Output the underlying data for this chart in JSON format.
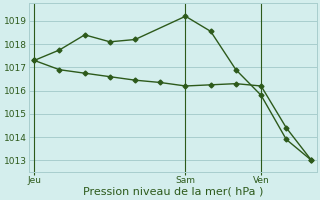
{
  "line1_x": [
    0,
    1,
    2,
    3,
    4,
    6,
    7,
    8,
    9,
    10,
    11
  ],
  "line1_y": [
    1017.3,
    1017.75,
    1018.4,
    1018.1,
    1018.2,
    1019.2,
    1018.55,
    1016.9,
    1015.8,
    1013.9,
    1013.0
  ],
  "line2_x": [
    0,
    1,
    2,
    3,
    4,
    5,
    6,
    7,
    8,
    9,
    10,
    11
  ],
  "line2_y": [
    1017.3,
    1016.9,
    1016.75,
    1016.6,
    1016.45,
    1016.35,
    1016.2,
    1016.25,
    1016.3,
    1016.2,
    1014.4,
    1013.0
  ],
  "line_color": "#2d5a1b",
  "marker": "D",
  "markersize": 2.5,
  "linewidth": 1.0,
  "background_color": "#d4eeed",
  "grid_color": "#a8cece",
  "xlabel": "Pression niveau de la mer( hPa )",
  "xlabel_fontsize": 8,
  "ylim": [
    1012.5,
    1019.75
  ],
  "yticks": [
    1013,
    1014,
    1015,
    1016,
    1017,
    1018,
    1019
  ],
  "ytick_fontsize": 6.5,
  "xtick_fontsize": 6.5,
  "day_labels": [
    {
      "label": "Jeu",
      "x": 0
    },
    {
      "label": "Sam",
      "x": 6
    },
    {
      "label": "Ven",
      "x": 9
    }
  ],
  "vline_x": [
    0,
    6,
    9
  ],
  "xlim": [
    -0.2,
    11.2
  ]
}
